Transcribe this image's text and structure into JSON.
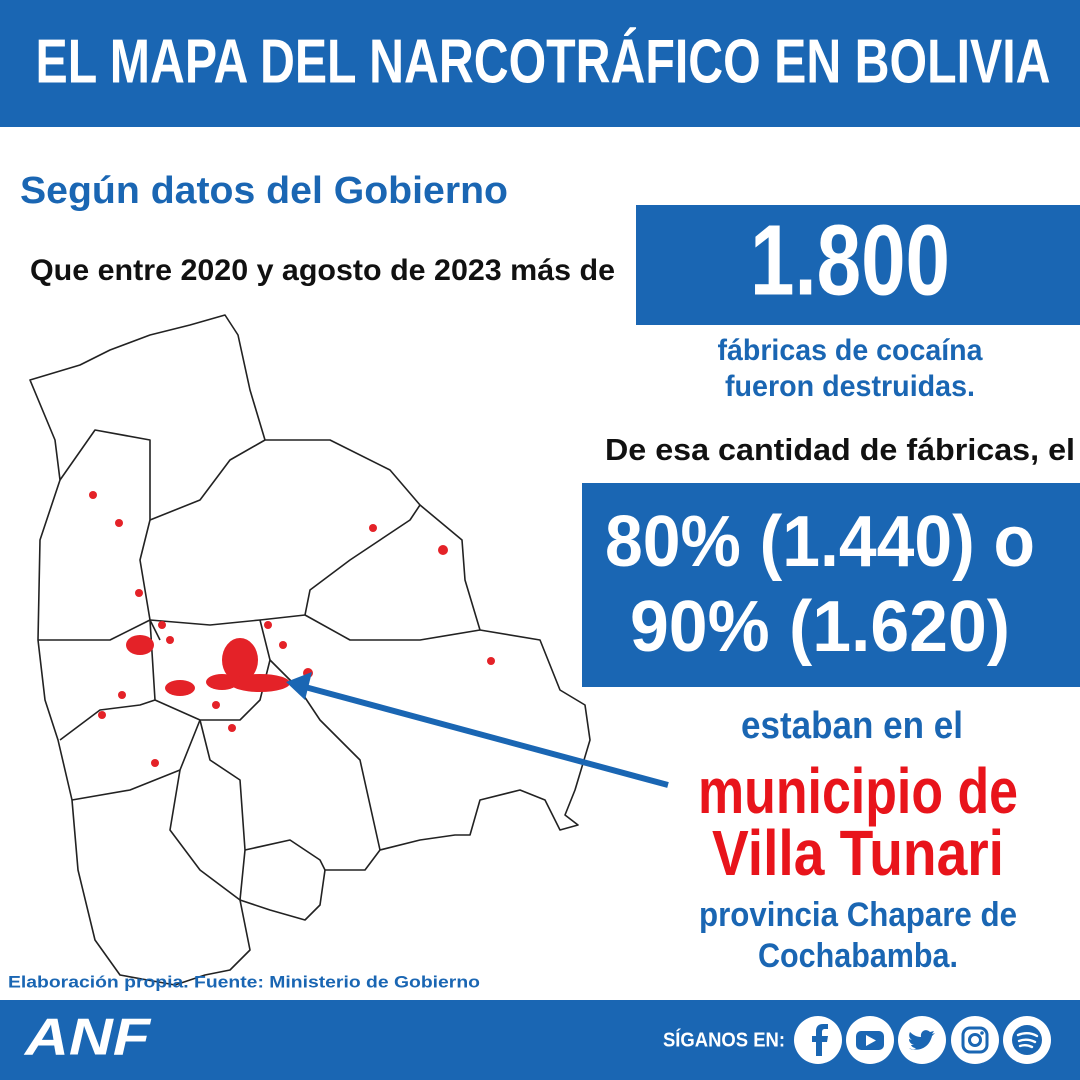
{
  "header": {
    "title": "EL MAPA DEL NARCOTRÁFICO EN BOLIVIA"
  },
  "subtitle": "Según datos del Gobierno",
  "intro": "Que entre 2020 y agosto de 2023 más de",
  "highlight": {
    "number": "1.800",
    "caption": [
      "fábricas de cocaína",
      "fueron destruidas."
    ]
  },
  "lead": "De esa cantidad de fábricas, el",
  "share": {
    "lines": [
      "80% (1.440) o",
      "90% (1.620)"
    ]
  },
  "location": {
    "intro": "estaban en el",
    "name": [
      "municipio de",
      "Villa Tunari"
    ],
    "detail": [
      "provincia Chapare de",
      "Cochabamba."
    ]
  },
  "source": "Elaboración propia. Fuente: Ministerio de Gobierno",
  "footer": {
    "logo": "ANF",
    "follow": "SÍGANOS EN:"
  }
}
